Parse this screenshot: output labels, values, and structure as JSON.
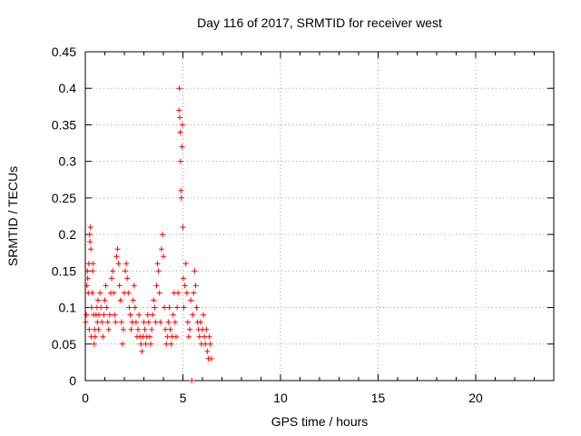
{
  "chart_data": {
    "type": "scatter",
    "title": "Day 116 of 2017, SRMTID for receiver west",
    "xlabel": "GPS time / hours",
    "ylabel": "SRMTID / TECUs",
    "xlim": [
      0,
      24
    ],
    "ylim": [
      0,
      0.45
    ],
    "xticks": [
      0,
      5,
      10,
      15,
      20
    ],
    "xtick_labels": [
      "0",
      "5",
      "10",
      "15",
      "20"
    ],
    "yticks": [
      0,
      0.05,
      0.1,
      0.15,
      0.2,
      0.25,
      0.3,
      0.35,
      0.4,
      0.45
    ],
    "ytick_labels": [
      "0",
      "0.05",
      "0.1",
      "0.15",
      "0.2",
      "0.25",
      "0.3",
      "0.35",
      "0.4",
      "0.45"
    ],
    "grid": true,
    "marker": "+",
    "series_color": "#ff0000",
    "series": [
      {
        "name": "SRMTID",
        "points": [
          [
            0.02,
            0.08
          ],
          [
            0.05,
            0.09
          ],
          [
            0.08,
            0.13
          ],
          [
            0.1,
            0.15
          ],
          [
            0.12,
            0.14
          ],
          [
            0.15,
            0.12
          ],
          [
            0.18,
            0.16
          ],
          [
            0.2,
            0.07
          ],
          [
            0.22,
            0.2
          ],
          [
            0.24,
            0.19
          ],
          [
            0.26,
            0.21
          ],
          [
            0.28,
            0.18
          ],
          [
            0.3,
            0.06
          ],
          [
            0.32,
            0.1
          ],
          [
            0.35,
            0.12
          ],
          [
            0.38,
            0.15
          ],
          [
            0.4,
            0.16
          ],
          [
            0.42,
            0.09
          ],
          [
            0.45,
            0.05
          ],
          [
            0.48,
            0.07
          ],
          [
            0.5,
            0.06
          ],
          [
            0.55,
            0.09
          ],
          [
            0.6,
            0.1
          ],
          [
            0.62,
            0.08
          ],
          [
            0.65,
            0.11
          ],
          [
            0.68,
            0.07
          ],
          [
            0.7,
            0.09
          ],
          [
            0.75,
            0.12
          ],
          [
            0.8,
            0.1
          ],
          [
            0.85,
            0.08
          ],
          [
            0.9,
            0.06
          ],
          [
            0.95,
            0.09
          ],
          [
            1.0,
            0.11
          ],
          [
            1.05,
            0.13
          ],
          [
            1.1,
            0.1
          ],
          [
            1.15,
            0.08
          ],
          [
            1.2,
            0.07
          ],
          [
            1.25,
            0.09
          ],
          [
            1.3,
            0.12
          ],
          [
            1.35,
            0.14
          ],
          [
            1.4,
            0.15
          ],
          [
            1.45,
            0.12
          ],
          [
            1.5,
            0.09
          ],
          [
            1.55,
            0.08
          ],
          [
            1.6,
            0.17
          ],
          [
            1.65,
            0.18
          ],
          [
            1.7,
            0.16
          ],
          [
            1.75,
            0.13
          ],
          [
            1.8,
            0.11
          ],
          [
            1.85,
            0.08
          ],
          [
            1.9,
            0.05
          ],
          [
            1.95,
            0.07
          ],
          [
            2.0,
            0.12
          ],
          [
            2.05,
            0.15
          ],
          [
            2.1,
            0.16
          ],
          [
            2.15,
            0.14
          ],
          [
            2.2,
            0.12
          ],
          [
            2.25,
            0.1
          ],
          [
            2.3,
            0.09
          ],
          [
            2.35,
            0.07
          ],
          [
            2.4,
            0.08
          ],
          [
            2.45,
            0.11
          ],
          [
            2.5,
            0.13
          ],
          [
            2.55,
            0.1
          ],
          [
            2.6,
            0.08
          ],
          [
            2.65,
            0.06
          ],
          [
            2.7,
            0.07
          ],
          [
            2.75,
            0.09
          ],
          [
            2.8,
            0.06
          ],
          [
            2.85,
            0.05
          ],
          [
            2.9,
            0.04
          ],
          [
            2.95,
            0.06
          ],
          [
            3.0,
            0.08
          ],
          [
            3.05,
            0.07
          ],
          [
            3.1,
            0.05
          ],
          [
            3.15,
            0.06
          ],
          [
            3.2,
            0.09
          ],
          [
            3.25,
            0.08
          ],
          [
            3.3,
            0.06
          ],
          [
            3.35,
            0.05
          ],
          [
            3.4,
            0.07
          ],
          [
            3.45,
            0.09
          ],
          [
            3.5,
            0.11
          ],
          [
            3.55,
            0.1
          ],
          [
            3.6,
            0.08
          ],
          [
            3.65,
            0.13
          ],
          [
            3.7,
            0.16
          ],
          [
            3.75,
            0.15
          ],
          [
            3.8,
            0.12
          ],
          [
            3.85,
            0.08
          ],
          [
            3.9,
            0.18
          ],
          [
            3.95,
            0.2
          ],
          [
            4.0,
            0.17
          ],
          [
            4.05,
            0.1
          ],
          [
            4.1,
            0.07
          ],
          [
            4.15,
            0.05
          ],
          [
            4.2,
            0.06
          ],
          [
            4.25,
            0.08
          ],
          [
            4.3,
            0.1
          ],
          [
            4.35,
            0.07
          ],
          [
            4.4,
            0.05
          ],
          [
            4.45,
            0.06
          ],
          [
            4.5,
            0.09
          ],
          [
            4.55,
            0.12
          ],
          [
            4.6,
            0.08
          ],
          [
            4.65,
            0.06
          ],
          [
            4.7,
            0.1
          ],
          [
            4.75,
            0.12
          ],
          [
            4.8,
            0.37
          ],
          [
            4.82,
            0.4
          ],
          [
            4.84,
            0.36
          ],
          [
            4.86,
            0.34
          ],
          [
            4.88,
            0.3
          ],
          [
            4.9,
            0.26
          ],
          [
            4.92,
            0.25
          ],
          [
            4.95,
            0.32
          ],
          [
            4.97,
            0.35
          ],
          [
            5.0,
            0.21
          ],
          [
            5.02,
            0.14
          ],
          [
            5.05,
            0.1
          ],
          [
            5.1,
            0.13
          ],
          [
            5.15,
            0.16
          ],
          [
            5.2,
            0.12
          ],
          [
            5.25,
            0.08
          ],
          [
            5.3,
            0.06
          ],
          [
            5.35,
            0.07
          ],
          [
            5.4,
            0.11
          ],
          [
            5.45,
            0.0
          ],
          [
            5.5,
            0.09
          ],
          [
            5.55,
            0.12
          ],
          [
            5.6,
            0.15
          ],
          [
            5.65,
            0.13
          ],
          [
            5.7,
            0.1
          ],
          [
            5.75,
            0.08
          ],
          [
            5.8,
            0.07
          ],
          [
            5.85,
            0.06
          ],
          [
            5.9,
            0.08
          ],
          [
            5.95,
            0.05
          ],
          [
            6.0,
            0.07
          ],
          [
            6.05,
            0.09
          ],
          [
            6.1,
            0.06
          ],
          [
            6.15,
            0.05
          ],
          [
            6.2,
            0.07
          ],
          [
            6.25,
            0.04
          ],
          [
            6.3,
            0.03
          ],
          [
            6.35,
            0.06
          ],
          [
            6.4,
            0.05
          ],
          [
            6.45,
            0.03
          ]
        ]
      }
    ]
  }
}
